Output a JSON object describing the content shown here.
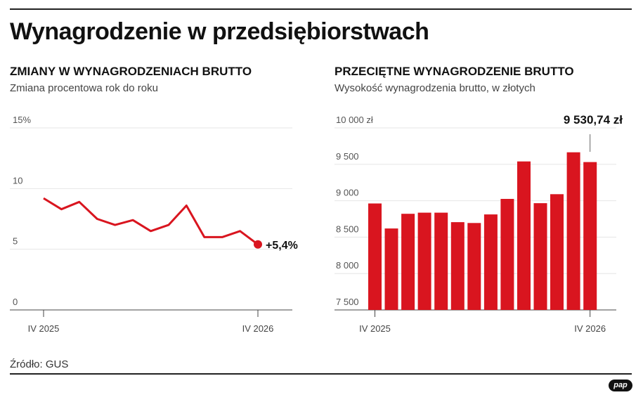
{
  "title": "Wynagrodzenie w przedsiębiorstwach",
  "source": "Źródło: GUS",
  "logo_text": "pap",
  "accent_color": "#d9151f",
  "chart_data": [
    {
      "type": "line",
      "title": "ZMIANY W WYNAGRODZENIACH BRUTTO",
      "subtitle": "Zmiana procentowa rok do roku",
      "ylim": [
        0,
        15
      ],
      "yticks": [
        "15%",
        "10",
        "5",
        "0"
      ],
      "ytick_values": [
        15,
        10,
        5,
        0
      ],
      "xtick_labels": [
        "IV 2025",
        "IV 2026"
      ],
      "series": [
        {
          "values": [
            9.2,
            8.3,
            8.9,
            7.5,
            7.0,
            7.4,
            6.5,
            7.0,
            8.6,
            6.0,
            6.0,
            6.5,
            5.4
          ]
        }
      ],
      "last_value_label": "+5,4%"
    },
    {
      "type": "bar",
      "title": "PRZECIĘTNE WYNAGRODZENIE BRUTTO",
      "subtitle": "Wysokość wynagrodzenia brutto, w złotych",
      "ylim": [
        7500,
        10000
      ],
      "yticks": [
        "10 000 zł",
        "9 500",
        "9 000",
        "8 500",
        "8 000",
        "7 500"
      ],
      "ytick_values": [
        10000,
        9500,
        9000,
        8500,
        8000,
        7500
      ],
      "xtick_labels": [
        "IV 2025",
        "IV 2026"
      ],
      "values": [
        8962,
        8619,
        8820,
        8836,
        8836,
        8706,
        8694,
        8812,
        9025,
        9540,
        8966,
        9090,
        9665,
        9530.74
      ],
      "last_value_label": "9 530,74 zł"
    }
  ]
}
